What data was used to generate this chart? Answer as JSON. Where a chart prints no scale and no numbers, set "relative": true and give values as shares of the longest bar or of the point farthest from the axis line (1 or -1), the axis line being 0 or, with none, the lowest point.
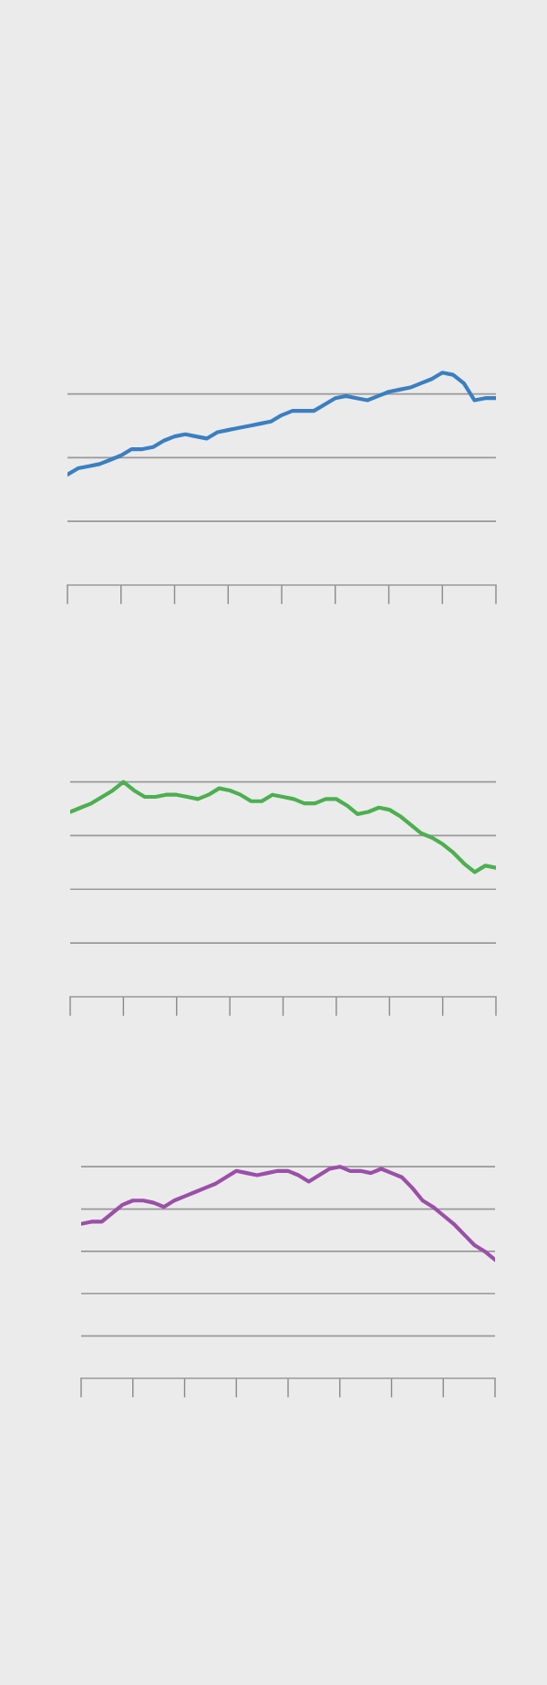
{
  "chart_data": [
    {
      "type": "line",
      "relative": true,
      "grid": "y",
      "marker": "none",
      "line_style": "solid",
      "categories": [
        null,
        null,
        null,
        null,
        null,
        null,
        null,
        null,
        null,
        null,
        null,
        null,
        null,
        null,
        null,
        null,
        null,
        null,
        null,
        null,
        null,
        null,
        null,
        null,
        null,
        null,
        null,
        null,
        null,
        null,
        null,
        null,
        null,
        null,
        null,
        null,
        null,
        null,
        null,
        null,
        null
      ],
      "series": [
        {
          "color": "#3a7fc1",
          "values": [
            0.52,
            0.55,
            0.56,
            0.57,
            0.59,
            0.61,
            0.64,
            0.64,
            0.65,
            0.68,
            0.7,
            0.71,
            0.7,
            0.69,
            0.72,
            0.73,
            0.74,
            0.75,
            0.76,
            0.77,
            0.8,
            0.82,
            0.82,
            0.82,
            0.85,
            0.88,
            0.89,
            0.88,
            0.87,
            0.89,
            0.91,
            0.92,
            0.93,
            0.95,
            0.97,
            1,
            0.99,
            0.95,
            0.87,
            0.88,
            0.88
          ]
        }
      ]
    },
    {
      "type": "line",
      "relative": true,
      "grid": "y",
      "marker": "none",
      "line_style": "solid",
      "categories": [
        null,
        null,
        null,
        null,
        null,
        null,
        null,
        null,
        null,
        null,
        null,
        null,
        null,
        null,
        null,
        null,
        null,
        null,
        null,
        null,
        null,
        null,
        null,
        null,
        null,
        null,
        null,
        null,
        null,
        null,
        null,
        null,
        null,
        null,
        null,
        null,
        null,
        null,
        null,
        null,
        null
      ],
      "series": [
        {
          "color": "#4caf50",
          "values": [
            0.86,
            0.88,
            0.9,
            0.93,
            0.96,
            1,
            0.96,
            0.93,
            0.93,
            0.94,
            0.94,
            0.93,
            0.92,
            0.94,
            0.97,
            0.96,
            0.94,
            0.91,
            0.91,
            0.94,
            0.93,
            0.92,
            0.9,
            0.9,
            0.92,
            0.92,
            0.89,
            0.85,
            0.86,
            0.88,
            0.87,
            0.84,
            0.8,
            0.76,
            0.74,
            0.71,
            0.67,
            0.62,
            0.58,
            0.61,
            0.6
          ]
        }
      ]
    },
    {
      "type": "line",
      "relative": true,
      "grid": "y",
      "marker": "none",
      "line_style": "solid",
      "categories": [
        null,
        null,
        null,
        null,
        null,
        null,
        null,
        null,
        null,
        null,
        null,
        null,
        null,
        null,
        null,
        null,
        null,
        null,
        null,
        null,
        null,
        null,
        null,
        null,
        null,
        null,
        null,
        null,
        null,
        null,
        null,
        null,
        null,
        null,
        null,
        null,
        null,
        null,
        null,
        null,
        null
      ],
      "series": [
        {
          "color": "#9b4fa8",
          "values": [
            0.73,
            0.74,
            0.74,
            0.78,
            0.82,
            0.84,
            0.84,
            0.83,
            0.81,
            0.84,
            0.86,
            0.88,
            0.9,
            0.92,
            0.95,
            0.98,
            0.97,
            0.96,
            0.97,
            0.98,
            0.98,
            0.96,
            0.93,
            0.96,
            0.99,
            1,
            0.98,
            0.98,
            0.97,
            0.99,
            0.97,
            0.95,
            0.9,
            0.84,
            0.81,
            0.77,
            0.73,
            0.68,
            0.63,
            0.6,
            0.56
          ]
        }
      ]
    }
  ]
}
